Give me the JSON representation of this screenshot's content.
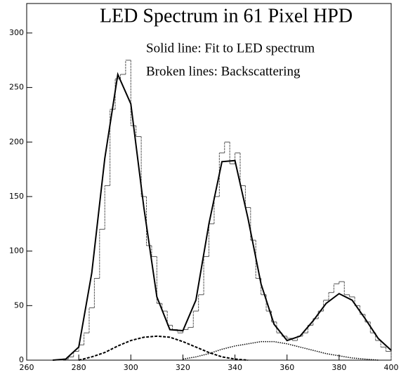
{
  "chart_data": {
    "type": "histogram",
    "title": "LED Spectrum in 61 Pixel HPD",
    "annotations": [
      "Solid line: Fit to LED spectrum",
      "Broken lines: Backscattering"
    ],
    "bins": [
      270,
      272,
      274,
      276,
      278,
      280,
      282,
      284,
      286,
      288,
      290,
      292,
      294,
      296,
      298,
      300,
      302,
      304,
      306,
      308,
      310,
      312,
      314,
      316,
      318,
      320,
      322,
      324,
      326,
      328,
      330,
      332,
      334,
      336,
      338,
      340,
      342,
      344,
      346,
      348,
      350,
      352,
      354,
      356,
      358,
      360,
      362,
      364,
      366,
      368,
      370,
      372,
      374,
      376,
      378,
      380,
      382,
      384,
      386,
      388,
      390,
      392,
      394,
      396,
      398,
      400
    ],
    "counts": [
      0,
      0,
      1,
      3,
      8,
      14,
      25,
      48,
      75,
      120,
      160,
      230,
      258,
      262,
      275,
      215,
      205,
      150,
      105,
      95,
      52,
      45,
      32,
      28,
      25,
      28,
      30,
      45,
      60,
      95,
      125,
      150,
      190,
      200,
      180,
      190,
      160,
      140,
      110,
      75,
      60,
      45,
      35,
      25,
      22,
      20,
      18,
      22,
      25,
      32,
      38,
      45,
      55,
      62,
      70,
      72,
      60,
      58,
      50,
      42,
      35,
      25,
      18,
      12,
      8
    ],
    "color": "#555555",
    "series": [
      {
        "style": "solid",
        "color": "#000000",
        "x": [
          270,
          275,
          280,
          285,
          290,
          295,
          300,
          305,
          310,
          315,
          320,
          325,
          330,
          335,
          340,
          345,
          350,
          355,
          360,
          365,
          370,
          375,
          380,
          385,
          390,
          395,
          400
        ],
        "values": [
          0,
          1,
          12,
          80,
          185,
          262,
          235,
          140,
          58,
          28,
          27,
          55,
          125,
          182,
          183,
          130,
          70,
          33,
          18,
          22,
          36,
          52,
          61,
          55,
          38,
          20,
          9
        ]
      },
      {
        "style": "dashed",
        "color": "#000000",
        "x": [
          280,
          285,
          290,
          295,
          300,
          305,
          310,
          315,
          320,
          325,
          330,
          335,
          340,
          345
        ],
        "values": [
          0,
          3,
          7,
          13,
          18,
          21,
          22,
          21,
          17,
          12,
          7,
          3,
          1,
          0
        ]
      },
      {
        "style": "dotted",
        "color": "#000000",
        "x": [
          320,
          325,
          330,
          335,
          340,
          345,
          350,
          355,
          360,
          365,
          370,
          375,
          380,
          385,
          390,
          395
        ],
        "values": [
          1,
          3,
          6,
          10,
          13,
          15,
          17,
          17,
          15,
          12,
          9,
          6,
          4,
          2,
          1,
          0
        ]
      }
    ],
    "xlim": [
      260,
      400
    ],
    "xticks": [
      260,
      280,
      300,
      320,
      340,
      360,
      380,
      400
    ],
    "ylim": [
      0,
      327
    ],
    "yticks": [
      0,
      50,
      100,
      150,
      200,
      250,
      300
    ]
  }
}
